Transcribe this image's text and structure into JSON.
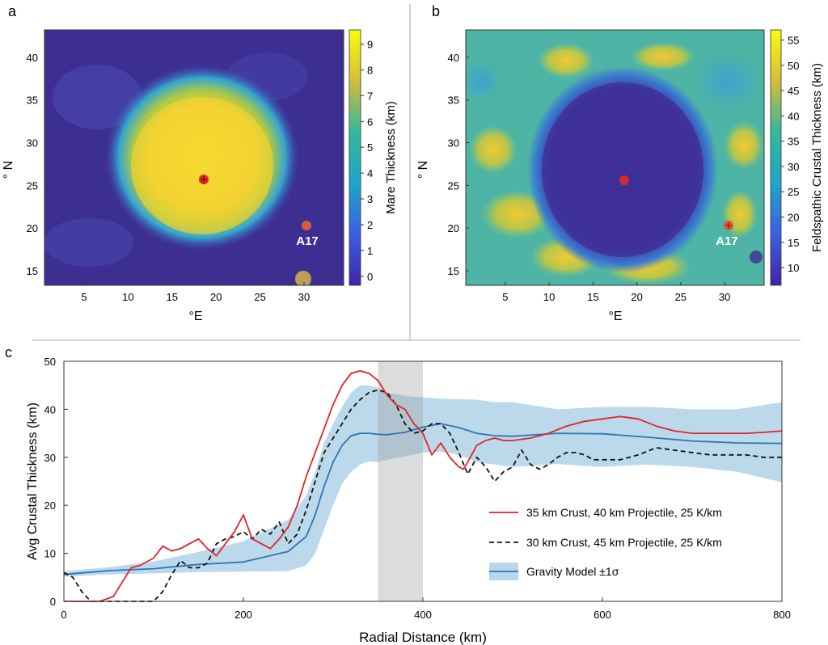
{
  "panels": {
    "a": {
      "letter": "a",
      "colorbar_label": "Mare Thickness (km)",
      "colorbar_ticks": [
        "0",
        "1",
        "2",
        "3",
        "4",
        "5",
        "6",
        "7",
        "8",
        "9"
      ],
      "xlabel": "°E",
      "ylabel": "° N",
      "site_label": "A17",
      "colors": {
        "low": "#3b2d8c",
        "mid": "#1fa6c9",
        "high": "#f5e02e"
      }
    },
    "b": {
      "letter": "b",
      "colorbar_label": "Feldspathic Crustal Thickness (km)",
      "colorbar_ticks": [
        "10",
        "15",
        "20",
        "25",
        "30",
        "35",
        "40",
        "45",
        "50",
        "55"
      ],
      "xlabel": "°E",
      "ylabel": "° N",
      "site_label": "A17",
      "colors": {
        "low": "#3b2d8c",
        "mid": "#2fb0a8",
        "high": "#f5d52e"
      }
    },
    "c": {
      "letter": "c"
    }
  },
  "map_axes": {
    "x_ticks": [
      "5",
      "10",
      "15",
      "20",
      "25",
      "30"
    ],
    "y_ticks": [
      "15",
      "20",
      "25",
      "30",
      "35",
      "40"
    ],
    "xlim": [
      0.5,
      34.5
    ],
    "ylim": [
      13.3,
      43.2
    ]
  },
  "chart_data": {
    "type": "line",
    "xlabel": "Radial Distance (km)",
    "ylabel": "Avg Crustal Thickness (km)",
    "xlim": [
      0,
      800
    ],
    "ylim": [
      0,
      50
    ],
    "x_ticks": [
      0,
      200,
      400,
      600,
      800
    ],
    "y_ticks": [
      0,
      10,
      20,
      30,
      40,
      50
    ],
    "shaded_band": [
      350,
      400
    ],
    "legend_position": "lower-right",
    "series": [
      {
        "name": "35 km Crust, 40 km Projectile, 25 K/km",
        "color": "#e0242b",
        "dash": "solid",
        "x": [
          0,
          20,
          40,
          55,
          65,
          75,
          85,
          100,
          110,
          120,
          130,
          140,
          150,
          160,
          170,
          180,
          190,
          200,
          210,
          220,
          230,
          240,
          250,
          260,
          270,
          280,
          290,
          300,
          310,
          320,
          330,
          340,
          350,
          360,
          370,
          380,
          390,
          400,
          410,
          420,
          430,
          440,
          445,
          450,
          460,
          470,
          480,
          490,
          500,
          520,
          540,
          560,
          580,
          600,
          620,
          640,
          660,
          680,
          700,
          720,
          740,
          760,
          780,
          800
        ],
        "y": [
          0,
          0,
          0,
          1,
          4,
          7,
          7.5,
          9,
          11.5,
          10.5,
          11,
          12,
          13,
          11,
          9.5,
          12,
          14.5,
          18,
          13,
          12,
          11,
          13,
          15.5,
          20,
          26,
          31,
          36,
          41,
          45,
          47.5,
          48,
          47.5,
          46,
          43,
          41,
          40,
          37,
          35,
          30.5,
          33,
          30,
          28,
          27.5,
          29,
          32.5,
          33.5,
          34,
          33.5,
          33.5,
          34,
          35,
          36.5,
          37.5,
          38,
          38.5,
          38,
          36.5,
          35.5,
          35,
          35,
          35,
          35,
          35.2,
          35.5
        ]
      },
      {
        "name": "30 km Crust, 45 km Projectile, 25 K/km",
        "color": "#111111",
        "dash": "dashed",
        "x": [
          0,
          10,
          20,
          30,
          45,
          60,
          80,
          100,
          110,
          120,
          130,
          140,
          150,
          160,
          170,
          180,
          190,
          200,
          210,
          220,
          230,
          240,
          250,
          260,
          270,
          280,
          290,
          300,
          310,
          320,
          330,
          340,
          350,
          360,
          370,
          380,
          390,
          400,
          410,
          420,
          430,
          440,
          450,
          460,
          470,
          480,
          490,
          500,
          510,
          520,
          530,
          540,
          550,
          560,
          570,
          580,
          590,
          600,
          620,
          640,
          660,
          680,
          700,
          720,
          740,
          760,
          780,
          800
        ],
        "y": [
          6,
          5,
          2,
          0,
          0,
          0,
          0,
          0,
          2,
          5.5,
          8.5,
          7,
          7,
          8,
          12,
          13,
          13.5,
          14.5,
          13,
          15,
          14,
          16.5,
          12,
          14,
          19,
          25,
          31,
          34,
          37,
          40,
          42,
          43.5,
          44,
          43.5,
          41,
          37,
          35,
          35.5,
          37,
          37,
          35,
          31,
          26.5,
          30,
          28,
          25,
          27,
          28,
          31.5,
          28.5,
          27.5,
          28.5,
          30,
          31,
          31,
          30.5,
          29.5,
          29.5,
          29.5,
          30.5,
          32,
          31.5,
          31,
          30.5,
          30.5,
          30.5,
          30,
          30
        ]
      },
      {
        "name": "Gravity Model ±1σ",
        "color": "#2b75b8",
        "dash": "solid",
        "band_color": "#b8d7ea",
        "x": [
          0,
          50,
          100,
          150,
          200,
          250,
          270,
          280,
          290,
          300,
          310,
          320,
          330,
          340,
          350,
          360,
          380,
          400,
          420,
          440,
          460,
          480,
          500,
          550,
          600,
          650,
          700,
          750,
          800
        ],
        "y": [
          5.6,
          6.4,
          6.8,
          7.7,
          8.2,
          10.4,
          13.5,
          18,
          24,
          29,
          32.5,
          34.5,
          35,
          35,
          34.8,
          34.7,
          35.2,
          36.3,
          37,
          36.2,
          35,
          34.5,
          34.4,
          35,
          34.9,
          34.2,
          33.4,
          33,
          32.9
        ],
        "upper": [
          6.3,
          7.1,
          8.3,
          10.3,
          12.5,
          17,
          22,
          27,
          33,
          37,
          40.5,
          43.5,
          45,
          45,
          44.5,
          43.5,
          42.8,
          42.5,
          42.2,
          42.1,
          42,
          41.5,
          41.5,
          40,
          40.5,
          40.5,
          40,
          40,
          41.5
        ],
        "lower": [
          5.1,
          5.6,
          5.8,
          6.1,
          6.2,
          6.3,
          7.5,
          10,
          15,
          20,
          24.5,
          27,
          28.5,
          29.2,
          29,
          29.5,
          30.2,
          31,
          31.2,
          30.5,
          29,
          28.5,
          28,
          28.6,
          28,
          28.5,
          28,
          27,
          24.8
        ]
      }
    ]
  }
}
